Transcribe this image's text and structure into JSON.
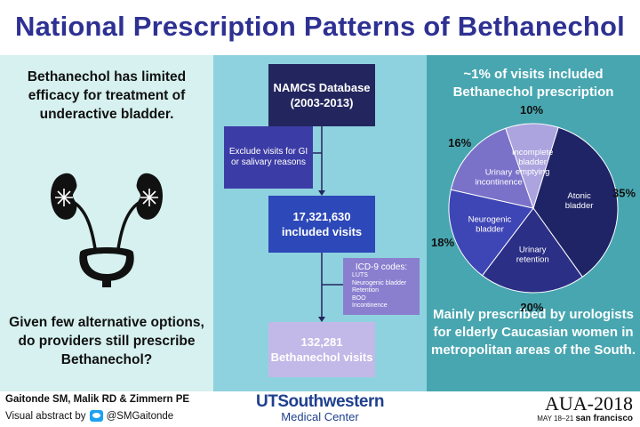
{
  "title": "National Prescription Patterns of Bethanechol",
  "left": {
    "top_text": "Bethanechol has limited efficacy for treatment of underactive bladder.",
    "bottom_text": "Given few alternative options, do providers still prescribe Bethanechol?"
  },
  "flow": {
    "namcs_line1": "NAMCS Database",
    "namcs_line2": "(2003-2013)",
    "exclude": "Exclude visits for GI or salivary reasons",
    "included_line1": "17,321,630",
    "included_line2": "included visits",
    "icd_title": "ICD-9 codes:",
    "icd_items": [
      "LUTS",
      "Neurogenic bladder",
      "Retention",
      "BOO",
      "Incontinence"
    ],
    "beth_line1": "132,281",
    "beth_line2": "Bethanechol visits"
  },
  "right": {
    "top_text": "~1% of visits included Bethanechol prescription",
    "bottom_text": "Mainly prescribed by urologists for elderly Caucasian women in metropolitan areas of the South."
  },
  "chart_data": {
    "type": "pie",
    "slices": [
      {
        "label": "Atonic bladder",
        "value": 35,
        "pct_label": "35%",
        "color": "#1f2466"
      },
      {
        "label": "Urinary retention",
        "value": 20,
        "pct_label": "20%",
        "color": "#2c2f86"
      },
      {
        "label": "Neurogenic bladder",
        "value": 18,
        "pct_label": "18%",
        "color": "#3e45b5"
      },
      {
        "label": "Urinary incontinence",
        "value": 16,
        "pct_label": "16%",
        "color": "#7a72c9"
      },
      {
        "label": "Incomplete bladder emptying",
        "value": 10,
        "pct_label": "10%",
        "color": "#aca4df"
      }
    ]
  },
  "footer": {
    "authors": "Gaitonde SM, Malik RD & Zimmern PE",
    "abstract_prefix": "Visual abstract by",
    "twitter_handle": "@SMGaitonde",
    "utsw_main": "UTSouthwestern",
    "utsw_sub": "Medical Center",
    "aua_main": "AUA-2018",
    "aua_dates": "MAY 18–21",
    "aua_city": "san francisco"
  }
}
